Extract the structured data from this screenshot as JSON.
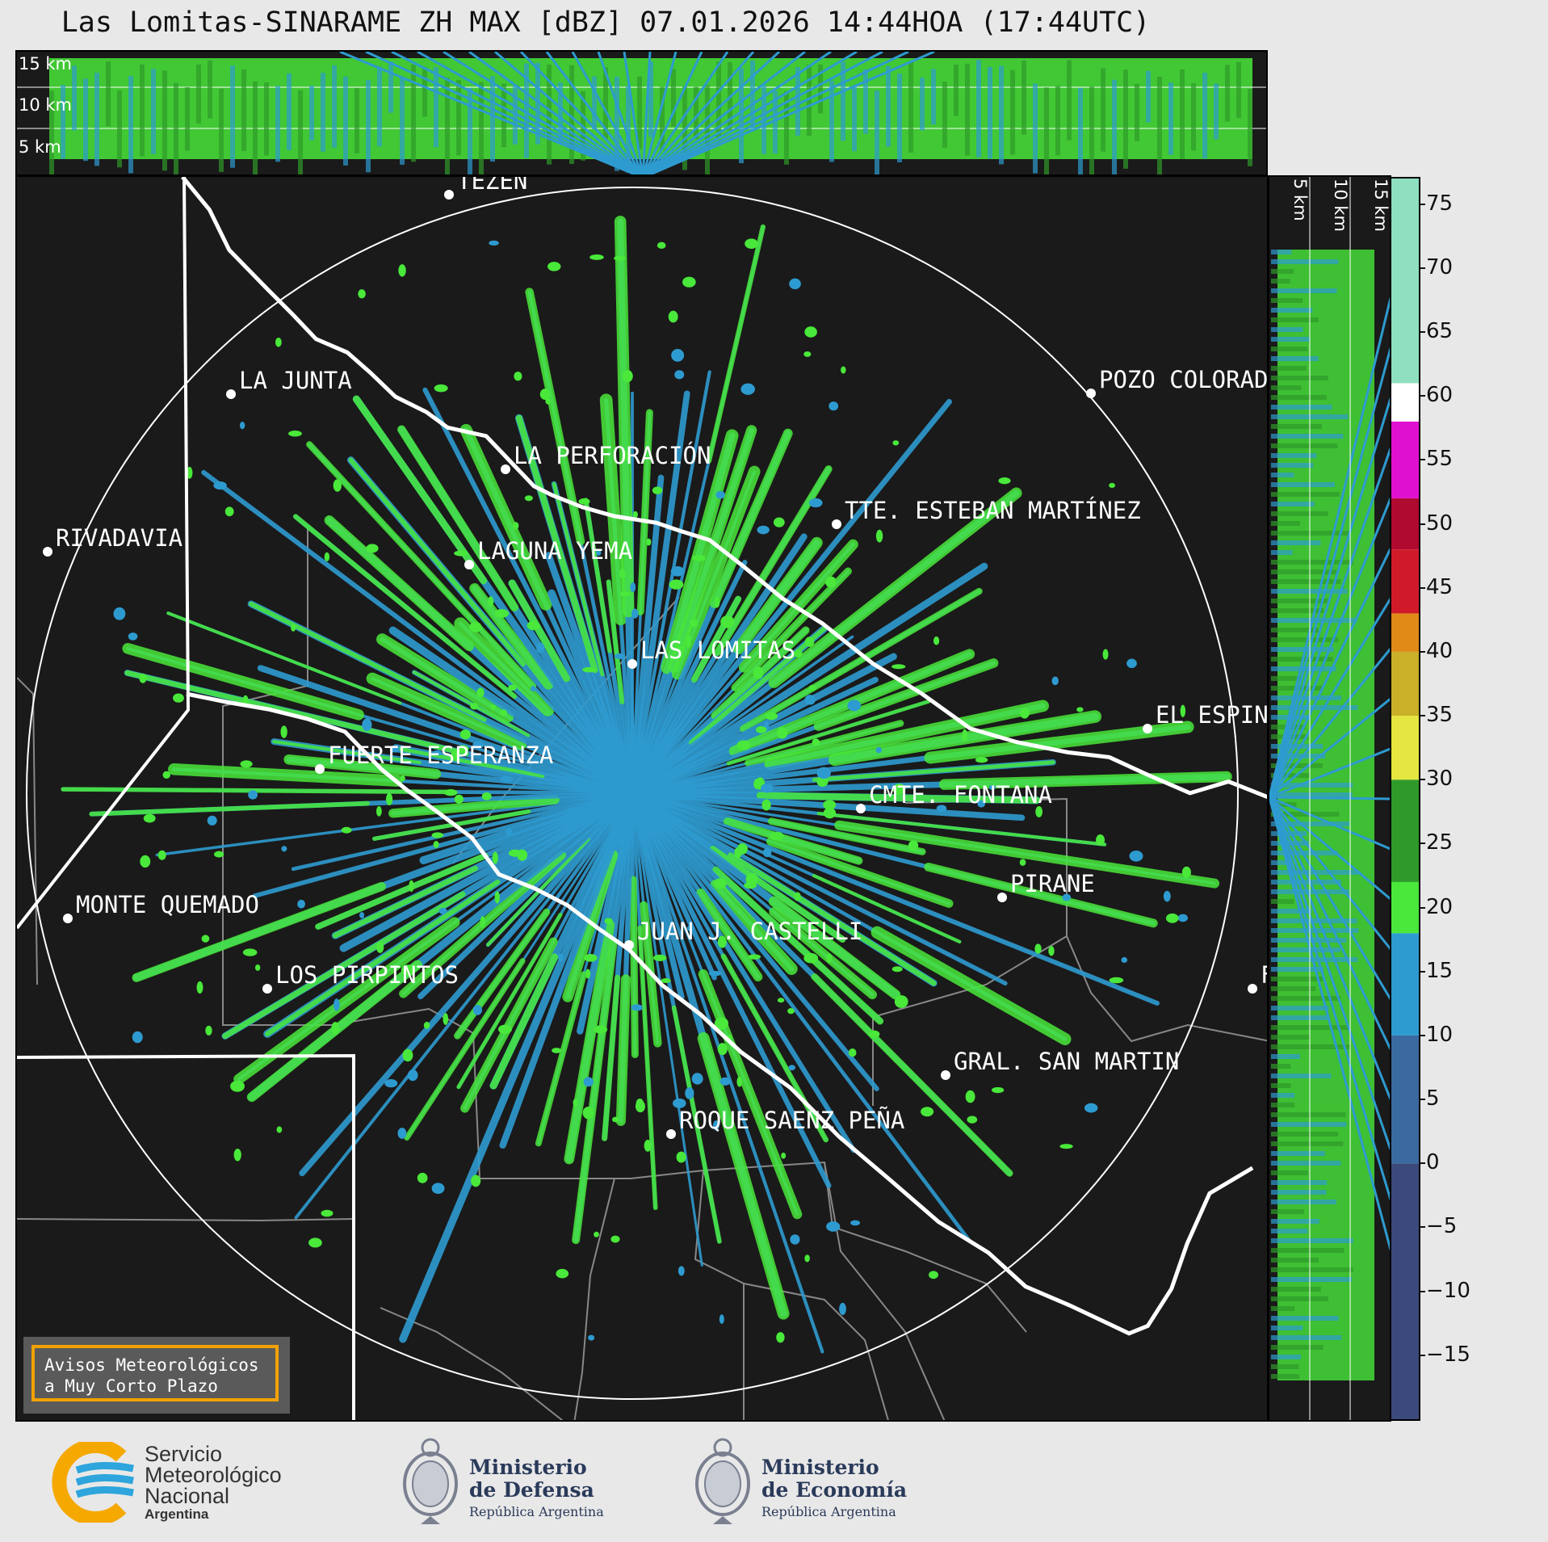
{
  "title": "Las Lomitas-SINARAME ZH MAX [dBZ] 07.01.2026 14:44HOA (17:44UTC)",
  "top_panel": {
    "altitude_labels": [
      "15 km",
      "10 km",
      "5 km"
    ]
  },
  "side_panel": {
    "altitude_labels": [
      "5 km",
      "10 km",
      "15 km"
    ]
  },
  "cities": [
    {
      "name": "TEZÉN"
    },
    {
      "name": "LA JUNTA"
    },
    {
      "name": "POZO COLORAD"
    },
    {
      "name": "LA PERFORACIÓN"
    },
    {
      "name": "TTE. ESTEBAN MARTÍNEZ"
    },
    {
      "name": "RIVADAVIA"
    },
    {
      "name": "LAGUNA YEMA"
    },
    {
      "name": "LAS LOMITAS"
    },
    {
      "name": "EL ESPIN"
    },
    {
      "name": "FUERTE ESPERANZA"
    },
    {
      "name": "CMTE. FONTANA"
    },
    {
      "name": "PIRANE"
    },
    {
      "name": "MONTE QUEMADO"
    },
    {
      "name": "JUAN J. CASTELLI"
    },
    {
      "name": "LOS PIRPINTOS"
    },
    {
      "name": "GRAL. SAN MARTIN"
    },
    {
      "name": "ROQUE SAENZ PEÑA"
    },
    {
      "name": "F"
    }
  ],
  "colorbar": {
    "unit": "dBZ",
    "ticks": [
      "75",
      "70",
      "65",
      "60",
      "55",
      "50",
      "45",
      "40",
      "35",
      "30",
      "25",
      "20",
      "15",
      "10",
      "5",
      "0",
      "−5",
      "−10",
      "−15"
    ],
    "range": [
      -20,
      77
    ],
    "stops": [
      {
        "from": -20,
        "to": 0,
        "color": "#3b4a7a"
      },
      {
        "from": 0,
        "to": 10,
        "color": "#3a6aa0"
      },
      {
        "from": 10,
        "to": 18,
        "color": "#2e9bd0"
      },
      {
        "from": 18,
        "to": 22,
        "color": "#49e83a"
      },
      {
        "from": 22,
        "to": 30,
        "color": "#2f9a2a"
      },
      {
        "from": 30,
        "to": 35,
        "color": "#e6e640"
      },
      {
        "from": 35,
        "to": 40,
        "color": "#c9b028"
      },
      {
        "from": 40,
        "to": 43,
        "color": "#e08a18"
      },
      {
        "from": 43,
        "to": 48,
        "color": "#d01a2a"
      },
      {
        "from": 48,
        "to": 52,
        "color": "#b00a30"
      },
      {
        "from": 52,
        "to": 58,
        "color": "#e010d0"
      },
      {
        "from": 58,
        "to": 61,
        "color": "#ffffff"
      },
      {
        "from": 61,
        "to": 77,
        "color": "#8ee0c0"
      }
    ]
  },
  "warning_box": {
    "line1": "Avisos Meteorológicos",
    "line2": "a Muy Corto Plazo"
  },
  "logos": {
    "smn": {
      "line1": "Servicio",
      "line2": "Meteorológico",
      "line3": "Nacional",
      "line4": "Argentina"
    },
    "defensa": {
      "line1": "Ministerio",
      "line2": "de Defensa",
      "line3": "República Argentina"
    },
    "economia": {
      "line1": "Ministerio",
      "line2": "de Economía",
      "line3": "República Argentina"
    }
  },
  "colors": {
    "radar_green": "#49e83a",
    "radar_blue": "#2e9bd0",
    "map_bg": "#1a1a1a",
    "warning_border": "#f2a100",
    "smn_blue": "#2ea5dc",
    "smn_orange": "#f5a800"
  }
}
